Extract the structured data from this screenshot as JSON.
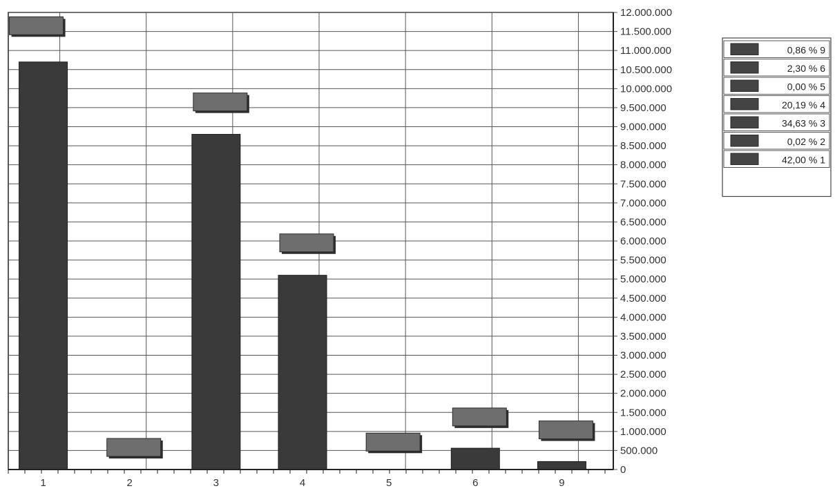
{
  "chart_data": {
    "type": "bar",
    "categories": [
      "1",
      "2",
      "3",
      "4",
      "5",
      "6",
      "9"
    ],
    "values": [
      10700000,
      8000,
      8800000,
      5100000,
      0,
      560000,
      210000
    ],
    "ylim": [
      0,
      12000000
    ],
    "yticks": [
      {
        "value": 0,
        "label": "0"
      },
      {
        "value": 500000,
        "label": "500.000"
      },
      {
        "value": 1000000,
        "label": "1.000.000"
      },
      {
        "value": 1500000,
        "label": "1.500.000"
      },
      {
        "value": 2000000,
        "label": "2.000.000"
      },
      {
        "value": 2500000,
        "label": "2.500.000"
      },
      {
        "value": 3000000,
        "label": "3.000.000"
      },
      {
        "value": 3500000,
        "label": "3.500.000"
      },
      {
        "value": 4000000,
        "label": "4.000.000"
      },
      {
        "value": 4500000,
        "label": "4.500.000"
      },
      {
        "value": 5000000,
        "label": "5.000.000"
      },
      {
        "value": 5500000,
        "label": "5.500.000"
      },
      {
        "value": 6000000,
        "label": "6.000.000"
      },
      {
        "value": 6500000,
        "label": "6.500.000"
      },
      {
        "value": 7000000,
        "label": "7.000.000"
      },
      {
        "value": 7500000,
        "label": "7.500.000"
      },
      {
        "value": 8000000,
        "label": "8.000.000"
      },
      {
        "value": 8500000,
        "label": "8.500.000"
      },
      {
        "value": 9000000,
        "label": "9.000.000"
      },
      {
        "value": 9500000,
        "label": "9.500.000"
      },
      {
        "value": 10000000,
        "label": "10.000.000"
      },
      {
        "value": 10500000,
        "label": "10.500.000"
      },
      {
        "value": 11000000,
        "label": "11.000.000"
      },
      {
        "value": 11500000,
        "label": "11.500.000"
      },
      {
        "value": 12000000,
        "label": "12.000.000"
      }
    ],
    "y_axis_side": "right",
    "grid": true,
    "label_box_values": [
      11650000,
      580000,
      9650000,
      5950000,
      720000,
      1380000,
      1040000
    ],
    "legend": {
      "placement": "right",
      "entries": [
        "0,86 % 9",
        "2,30 % 6",
        "0,00 % 5",
        "20,19 % 4",
        "34,63 % 3",
        "0,02 % 2",
        "42,00 % 1"
      ]
    },
    "colors": {
      "bar": "#3a3a3a",
      "label_box": "#6e6e6e",
      "grid": "#555555",
      "axis": "#222222"
    }
  }
}
